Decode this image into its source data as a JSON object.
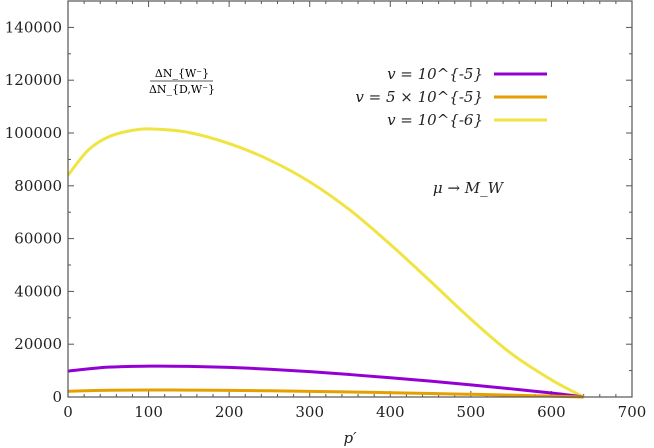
{
  "chart_data": {
    "type": "line",
    "xlabel": "p′",
    "ylabel_fraction": {
      "numerator": "ΔN_{W⁻}",
      "denominator": "ΔN_{D,W⁻}"
    },
    "annotation": "μ → M_W",
    "xlim": [
      0,
      700
    ],
    "ylim": [
      0,
      150000
    ],
    "xticks": [
      0,
      100,
      200,
      300,
      400,
      500,
      600,
      700
    ],
    "yticks": [
      0,
      20000,
      40000,
      60000,
      80000,
      100000,
      120000,
      140000
    ],
    "grid": false,
    "legend_position": "top-right",
    "series": [
      {
        "name": "v = 10^{-5}",
        "color": "#9400d3",
        "x": [
          0,
          50,
          105,
          150,
          200,
          250,
          300,
          350,
          400,
          450,
          500,
          550,
          600,
          640
        ],
        "y": [
          9800,
          11300,
          11700,
          11600,
          11200,
          10500,
          9600,
          8500,
          7300,
          6000,
          4600,
          3100,
          1500,
          0
        ]
      },
      {
        "name": "v = 5 × 10^{-5}",
        "color": "#e69f00",
        "x": [
          0,
          50,
          105,
          150,
          200,
          250,
          300,
          350,
          400,
          450,
          500,
          550,
          600,
          640
        ],
        "y": [
          2200,
          2550,
          2650,
          2620,
          2520,
          2350,
          2150,
          1900,
          1630,
          1340,
          1020,
          690,
          340,
          0
        ]
      },
      {
        "name": "v = 10^{-6}",
        "color": "#f0e442",
        "x": [
          0,
          25,
          50,
          80,
          105,
          150,
          200,
          250,
          300,
          350,
          400,
          450,
          500,
          550,
          600,
          640
        ],
        "y": [
          84000,
          93500,
          98500,
          101000,
          101500,
          100200,
          96000,
          89800,
          81500,
          70800,
          57800,
          43800,
          29500,
          16500,
          6500,
          0
        ]
      }
    ]
  }
}
